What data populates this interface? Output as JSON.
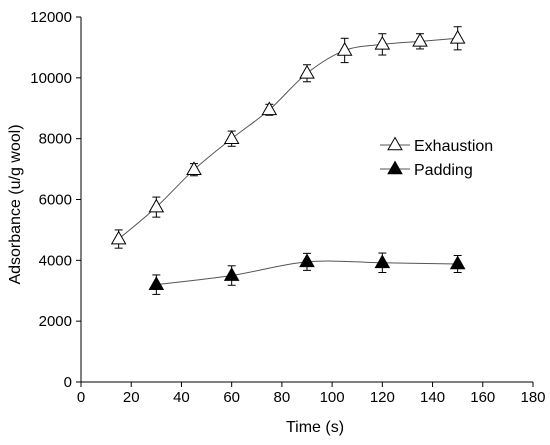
{
  "chart_data": {
    "type": "line",
    "title": "",
    "xlabel": "Time (s)",
    "ylabel": "Adsorbance (u/g wool)",
    "xlim": [
      0,
      180
    ],
    "ylim": [
      0,
      12000
    ],
    "xticks": [
      0,
      20,
      40,
      60,
      80,
      100,
      120,
      140,
      160,
      180
    ],
    "yticks": [
      0,
      2000,
      4000,
      6000,
      8000,
      10000,
      12000
    ],
    "grid": false,
    "legend": "center-right",
    "series": [
      {
        "name": "Exhaustion",
        "marker": "open-triangle",
        "x": [
          15,
          30,
          45,
          60,
          75,
          90,
          105,
          120,
          135,
          150
        ],
        "y": [
          4700,
          5750,
          6980,
          8000,
          8950,
          10150,
          10900,
          11100,
          11200,
          11300
        ],
        "err": [
          300,
          330,
          200,
          250,
          180,
          280,
          400,
          350,
          250,
          380
        ]
      },
      {
        "name": "Padding",
        "marker": "filled-triangle",
        "x": [
          30,
          60,
          90,
          120,
          150
        ],
        "y": [
          3200,
          3500,
          3950,
          3920,
          3880
        ],
        "err": [
          320,
          320,
          280,
          320,
          280
        ]
      }
    ]
  }
}
